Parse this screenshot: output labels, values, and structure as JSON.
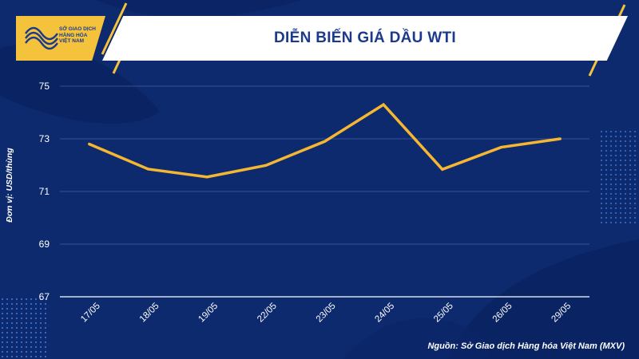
{
  "header": {
    "title": "DIỄN BIẾN GIÁ DẦU WTI",
    "logo_lines": [
      "SỞ GIAO DỊCH",
      "HÀNG HÓA",
      "VIỆT NAM"
    ]
  },
  "footer": {
    "source": "Nguồn: Sở Giao dịch Hàng hóa Việt Nam (MXV)"
  },
  "colors": {
    "background": "#0d2a6e",
    "accent": "#f5c33b",
    "line": "#f5b731",
    "title_text": "#1b3a8c"
  },
  "chart_data": {
    "type": "line",
    "title": "DIỄN BIẾN GIÁ DẦU WTI",
    "xlabel": "",
    "ylabel": "Đơn vị: USD/thùng",
    "categories": [
      "17/05",
      "18/05",
      "19/05",
      "22/05",
      "23/05",
      "24/05",
      "25/05",
      "26/05",
      "29/05"
    ],
    "series": [
      {
        "name": "WTI",
        "values": [
          72.8,
          71.85,
          71.55,
          71.99,
          72.9,
          74.3,
          71.84,
          72.68,
          73.0
        ]
      }
    ],
    "ylim": [
      67,
      75
    ],
    "yticks": [
      67,
      69,
      71,
      73,
      75
    ],
    "grid": true,
    "legend": "none"
  }
}
